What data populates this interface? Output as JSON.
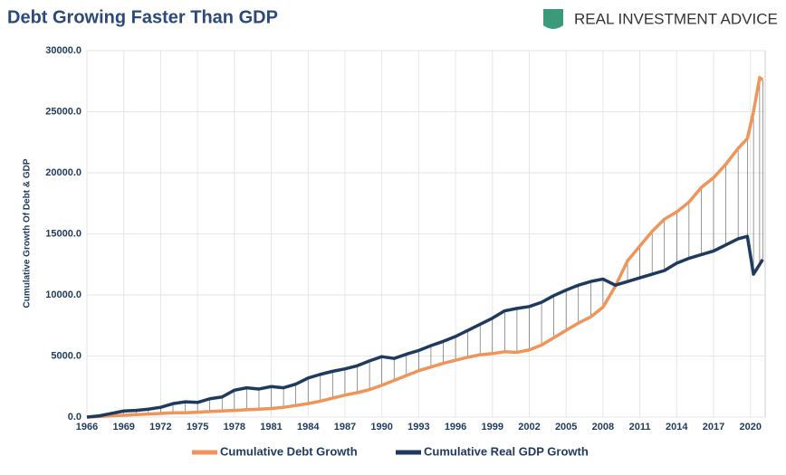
{
  "header": {
    "logo_text": "REAL INVESTMENT ADVICE"
  },
  "chart_data": {
    "type": "line",
    "title": "Debt Growing Faster Than GDP",
    "y_label": "Cumulative Growth Of Debt & GDP",
    "x": [
      1966,
      1967,
      1968,
      1969,
      1970,
      1971,
      1972,
      1973,
      1974,
      1975,
      1976,
      1977,
      1978,
      1979,
      1980,
      1981,
      1982,
      1983,
      1984,
      1985,
      1986,
      1987,
      1988,
      1989,
      1990,
      1991,
      1992,
      1993,
      1994,
      1995,
      1996,
      1997,
      1998,
      1999,
      2000,
      2001,
      2002,
      2003,
      2004,
      2005,
      2006,
      2007,
      2008,
      2009,
      2010,
      2011,
      2012,
      2013,
      2014,
      2015,
      2016,
      2017,
      2018,
      2019,
      2019.75,
      2020.25,
      2020.75,
      2021
    ],
    "series": [
      {
        "name": "Cumulative Debt Growth",
        "color": "#f0955a",
        "values": [
          0,
          50,
          100,
          150,
          200,
          250,
          300,
          350,
          350,
          400,
          450,
          500,
          550,
          600,
          650,
          700,
          800,
          950,
          1100,
          1300,
          1550,
          1800,
          2000,
          2250,
          2600,
          3000,
          3400,
          3800,
          4100,
          4400,
          4650,
          4900,
          5100,
          5200,
          5350,
          5300,
          5500,
          5900,
          6500,
          7100,
          7700,
          8200,
          9000,
          10700,
          12800,
          14000,
          15200,
          16200,
          16800,
          17600,
          18800,
          19600,
          20700,
          22000,
          22800,
          25000,
          27800,
          27600
        ]
      },
      {
        "name": "Cumulative Real GDP Growth",
        "color": "#1f3a5f",
        "values": [
          0,
          100,
          300,
          500,
          550,
          650,
          800,
          1100,
          1250,
          1200,
          1500,
          1650,
          2200,
          2400,
          2300,
          2500,
          2400,
          2700,
          3200,
          3500,
          3750,
          3950,
          4200,
          4600,
          4950,
          4800,
          5150,
          5450,
          5850,
          6200,
          6600,
          7100,
          7600,
          8100,
          8700,
          8900,
          9050,
          9400,
          9950,
          10400,
          10800,
          11100,
          11300,
          10800,
          11100,
          11400,
          11700,
          12000,
          12600,
          13000,
          13300,
          13600,
          14100,
          14600,
          14800,
          11700,
          12500,
          12900
        ]
      }
    ],
    "xlim": [
      1966,
      2021.2
    ],
    "xticks": [
      1966,
      1969,
      1972,
      1975,
      1978,
      1981,
      1984,
      1987,
      1990,
      1993,
      1996,
      1999,
      2002,
      2005,
      2008,
      2011,
      2014,
      2017,
      2020
    ],
    "ylim": [
      0,
      30000
    ],
    "yticks": [
      {
        "value": 0,
        "label": "0.0"
      },
      {
        "value": 5000,
        "label": "5000.0"
      },
      {
        "value": 10000,
        "label": "10000.0"
      },
      {
        "value": 15000,
        "label": "15000.0"
      },
      {
        "value": 20000,
        "label": "20000.0"
      },
      {
        "value": 25000,
        "label": "25000.0"
      },
      {
        "value": 30000,
        "label": "30000.0"
      }
    ],
    "grid": true,
    "legend": "bottom"
  }
}
